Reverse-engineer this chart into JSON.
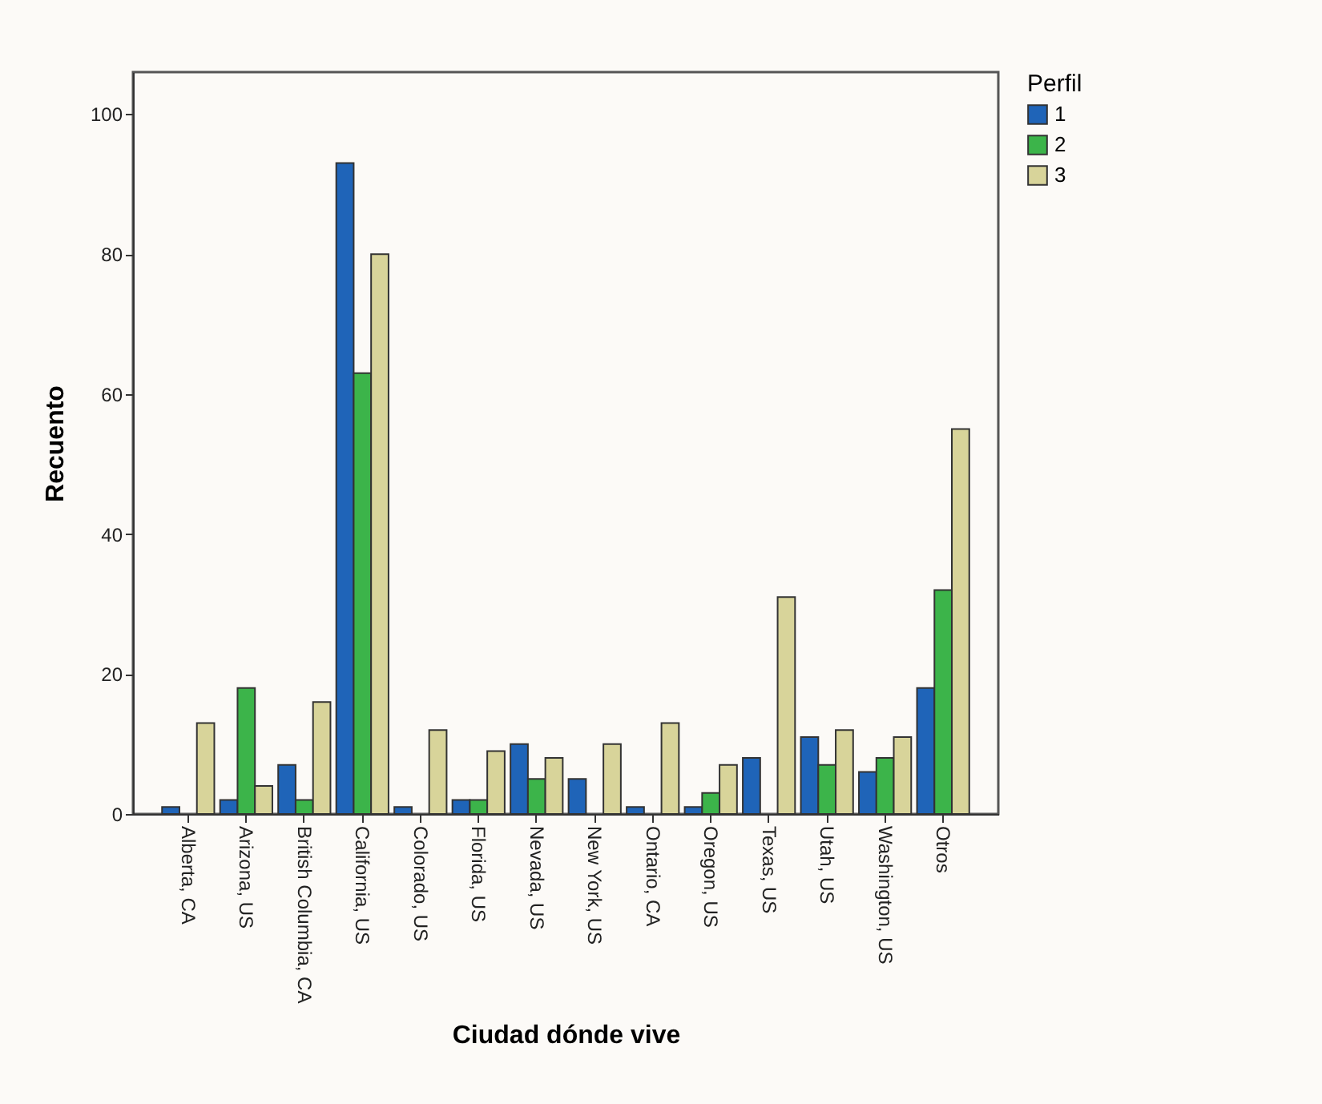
{
  "chart_data": {
    "type": "bar",
    "xlabel": "Ciudad dónde vive",
    "ylabel": "Recuento",
    "legend_title": "Perfil",
    "categories": [
      "Alberta, CA",
      "Arizona, US",
      "British Columbia, CA",
      "California, US",
      "Colorado, US",
      "Florida, US",
      "Nevada, US",
      "New York, US",
      "Ontario, CA",
      "Oregon, US",
      "Texas, US",
      "Utah, US",
      "Washington, US",
      "Otros"
    ],
    "series": [
      {
        "name": "1",
        "color": "#1f64b8",
        "values": [
          1,
          2,
          7,
          93,
          1,
          2,
          10,
          5,
          1,
          1,
          8,
          11,
          6,
          18
        ]
      },
      {
        "name": "2",
        "color": "#3cb44a",
        "values": [
          null,
          18,
          2,
          63,
          null,
          2,
          5,
          null,
          null,
          3,
          null,
          7,
          8,
          32
        ]
      },
      {
        "name": "3",
        "color": "#d8d49a",
        "values": [
          13,
          4,
          16,
          80,
          12,
          9,
          8,
          10,
          13,
          7,
          31,
          12,
          11,
          55
        ]
      }
    ],
    "ylim": [
      0,
      106
    ],
    "yticks": [
      0,
      20,
      40,
      60,
      80,
      100
    ],
    "grid": false,
    "legend": "top right"
  }
}
